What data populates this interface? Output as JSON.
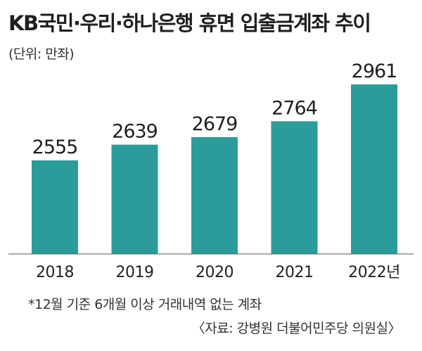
{
  "title": "KB국민·우리·하나은행 휴면 입출금계좌 추이",
  "unit_label": "(단위: 만좌)",
  "footnote": "*12월 기준 6개월 이상 거래내역 없는 계좌",
  "source": "〈자료: 강병원 더불어민주당 의원실〉",
  "colors": {
    "bar": "#2a9d9a",
    "axis": "#555555"
  },
  "chart_data": {
    "type": "bar",
    "categories": [
      "2018",
      "2019",
      "2020",
      "2021",
      "2022년"
    ],
    "values": [
      2555,
      2639,
      2679,
      2764,
      2961
    ],
    "title": "KB국민·우리·하나은행 휴면 입출금계좌 추이",
    "xlabel": "",
    "ylabel": "",
    "unit": "만좌",
    "grid": false,
    "legend": "none"
  }
}
